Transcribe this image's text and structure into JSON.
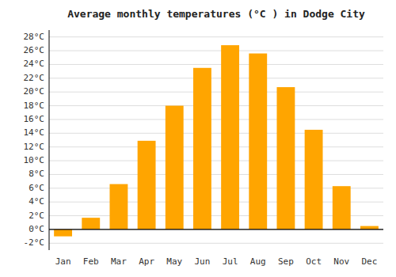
{
  "chart_data": {
    "type": "bar",
    "title": "Average monthly temperatures (°C ) in Dodge City",
    "categories": [
      "Jan",
      "Feb",
      "Mar",
      "Apr",
      "May",
      "Jun",
      "Jul",
      "Aug",
      "Sep",
      "Oct",
      "Nov",
      "Dec"
    ],
    "values": [
      -1.0,
      1.7,
      6.6,
      12.9,
      18.0,
      23.5,
      26.8,
      25.6,
      20.7,
      14.5,
      6.3,
      0.5
    ],
    "color": "#FFA500",
    "ylim": [
      -3,
      29
    ],
    "yticks": [
      {
        "value": -2,
        "label": "-2°C"
      },
      {
        "value": 0,
        "label": "0°C"
      },
      {
        "value": 2,
        "label": "2°C"
      },
      {
        "value": 4,
        "label": "4°C"
      },
      {
        "value": 6,
        "label": "6°C"
      },
      {
        "value": 8,
        "label": "8°C"
      },
      {
        "value": 10,
        "label": "10°C"
      },
      {
        "value": 12,
        "label": "12°C"
      },
      {
        "value": 14,
        "label": "14°C"
      },
      {
        "value": 16,
        "label": "16°C"
      },
      {
        "value": 18,
        "label": "18°C"
      },
      {
        "value": 20,
        "label": "20°C"
      },
      {
        "value": 22,
        "label": "22°C"
      },
      {
        "value": 24,
        "label": "24°C"
      },
      {
        "value": 26,
        "label": "26°C"
      },
      {
        "value": 28,
        "label": "28°C"
      }
    ],
    "grid": true
  }
}
